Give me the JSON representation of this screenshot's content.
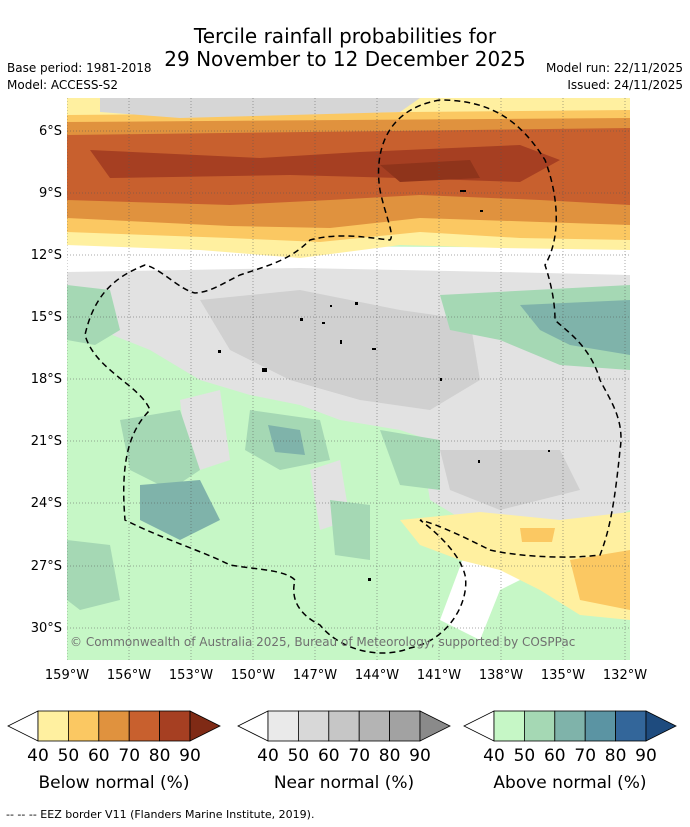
{
  "title_line1": "Tercile rainfall probabilities for",
  "title_line2": "29 November to 12 December 2025",
  "base_period": "Base period: 1981-2018",
  "model": "Model: ACCESS-S2",
  "model_run": "Model run: 22/11/2025",
  "issued": "Issued: 24/11/2025",
  "lat_labels": [
    "6°S",
    "9°S",
    "12°S",
    "15°S",
    "18°S",
    "21°S",
    "24°S",
    "27°S",
    "30°S"
  ],
  "lon_labels": [
    "159°W",
    "156°W",
    "153°W",
    "150°W",
    "147°W",
    "144°W",
    "141°W",
    "138°W",
    "135°W",
    "132°W"
  ],
  "copyright": "© Commonwealth of Australia 2025, Bureau of Meteorology, supported by COSPPac",
  "colorbars": [
    {
      "name": "Below normal (%)",
      "ticks": [
        "40",
        "50",
        "60",
        "70",
        "80",
        "90"
      ],
      "colors": [
        "#fff0a0",
        "#fbc862",
        "#e0923e",
        "#c8602e",
        "#a63f22",
        "#7f2a15"
      ]
    },
    {
      "name": "Near normal (%)",
      "ticks": [
        "40",
        "50",
        "60",
        "70",
        "80",
        "90"
      ],
      "colors": [
        "#eaeaea",
        "#d8d8d8",
        "#c6c6c6",
        "#b4b4b4",
        "#a2a2a2",
        "#8a8a8a"
      ]
    },
    {
      "name": "Above normal (%)",
      "ticks": [
        "40",
        "50",
        "60",
        "70",
        "80",
        "90"
      ],
      "colors": [
        "#c6f7c6",
        "#a5d8b4",
        "#7fb3aa",
        "#5b94a3",
        "#33669a",
        "#1e4b7e"
      ]
    }
  ],
  "footer": "--  --  -- EEZ border V11 (Flanders Marine Institute, 2019)."
}
